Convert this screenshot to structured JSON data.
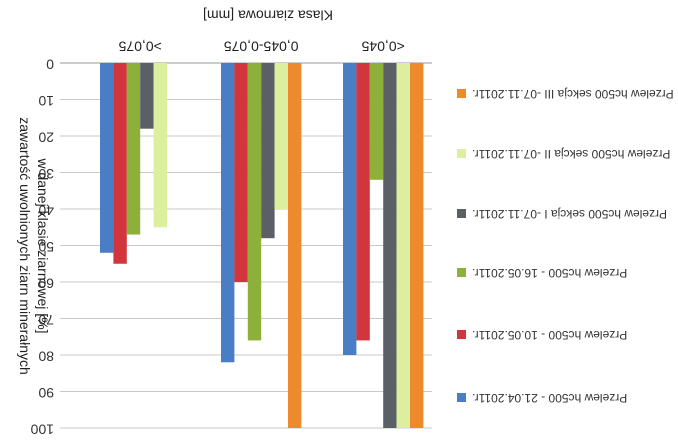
{
  "chart_data": {
    "type": "bar",
    "orientation": "mirrored-inverted",
    "title": "Klasa ziarnowa [mm]",
    "ylabel": "zawartość uwolnionych ziarn minerałnych w danej klasie ziarnowej [%]",
    "ylim": [
      0,
      100
    ],
    "yticks": [
      "0",
      "10",
      "20",
      "30",
      "40",
      "50",
      "60",
      "70",
      "80",
      "90",
      "100"
    ],
    "grid": true,
    "legend_position": "right",
    "categories": [
      ">0,075",
      "0,045-0,075",
      "<0,045"
    ],
    "series": [
      {
        "name": "Przelew hc500 - 21.04.2011r.",
        "color": "#4a7ec4",
        "values": [
          52,
          82,
          80
        ]
      },
      {
        "name": "Przelew hc500 - 10.05.2011r.",
        "color": "#d2353c",
        "values": [
          55,
          60,
          76
        ]
      },
      {
        "name": "Przelew hc500 - 16.05.2011r.",
        "color": "#8db03a",
        "values": [
          47,
          76,
          32
        ]
      },
      {
        "name": "Przelew hc500 sekcja I -07.11.2011r.",
        "color": "#5a6066",
        "values": [
          18,
          48,
          100
        ]
      },
      {
        "name": "Przelew hc500 sekcja II -07.11.2011r.",
        "color": "#dcef9e",
        "values": [
          45,
          40,
          100
        ]
      },
      {
        "name": "Przelew hc500 sekcja III -07.11.2011r.",
        "color": "#ee8a2e",
        "values": [
          null,
          100,
          100
        ]
      }
    ]
  }
}
